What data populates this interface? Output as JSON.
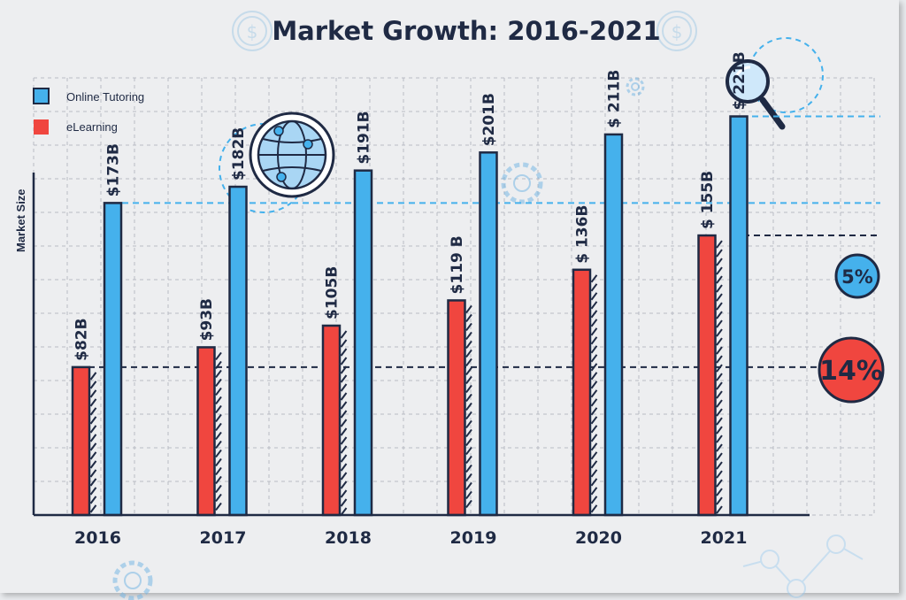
{
  "chart_data": {
    "type": "bar",
    "title": "Market Growth: 2016-2021",
    "xlabel": "",
    "ylabel": "Market Size",
    "categories": [
      "2016",
      "2017",
      "2018",
      "2019",
      "2020",
      "2021"
    ],
    "series": [
      {
        "name": "eLearning",
        "color": "#f0463f",
        "values": [
          82,
          93,
          105,
          119,
          136,
          155
        ],
        "labels": [
          "$82B",
          "$93B",
          "$105B",
          "$119 B",
          "$ 136B",
          "$ 155B"
        ]
      },
      {
        "name": "Online Tutoring",
        "color": "#45b1ec",
        "values": [
          173,
          182,
          191,
          201,
          211,
          221
        ],
        "labels": [
          "$173B",
          "$182B",
          "$191B",
          "$201B",
          "$ 211B",
          "$ 221B"
        ]
      }
    ],
    "ylim": [
      0,
      261
    ],
    "grid": true,
    "legend": "top-left",
    "annotations": [
      {
        "text": "5%",
        "color": "#45b1ec"
      },
      {
        "text": "14%",
        "color": "#f0463f"
      }
    ]
  },
  "icons": [
    "dollar-coin-icon",
    "dollar-coin-icon",
    "globe-icon",
    "magnifier-icon",
    "gear-icon",
    "gear-icon",
    "gear-icon",
    "network-icon"
  ]
}
